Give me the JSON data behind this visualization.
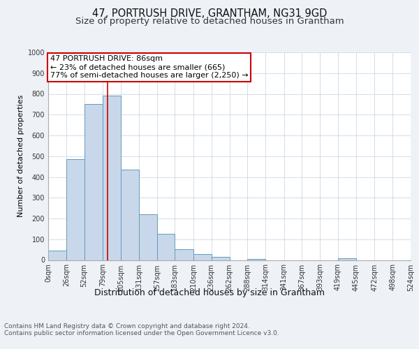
{
  "title": "47, PORTRUSH DRIVE, GRANTHAM, NG31 9GD",
  "subtitle": "Size of property relative to detached houses in Grantham",
  "xlabel": "Distribution of detached houses by size in Grantham",
  "ylabel": "Number of detached properties",
  "bin_edges": [
    0,
    26,
    52,
    79,
    105,
    131,
    157,
    183,
    210,
    236,
    262,
    288,
    314,
    341,
    367,
    393,
    419,
    445,
    472,
    498,
    524
  ],
  "bar_heights": [
    45,
    485,
    750,
    790,
    435,
    220,
    125,
    52,
    28,
    14,
    0,
    5,
    0,
    0,
    0,
    0,
    8,
    0,
    0,
    0
  ],
  "bar_color": "#c8d8ea",
  "bar_edge_color": "#6699bb",
  "bar_edge_width": 0.7,
  "vline_x": 86,
  "vline_color": "#cc0000",
  "annotation_line1": "47 PORTRUSH DRIVE: 86sqm",
  "annotation_line2": "← 23% of detached houses are smaller (665)",
  "annotation_line3": "77% of semi-detached houses are larger (2,250) →",
  "annotation_box_color": "#cc0000",
  "annotation_box_fill": "#ffffff",
  "ylim": [
    0,
    1000
  ],
  "yticks": [
    0,
    100,
    200,
    300,
    400,
    500,
    600,
    700,
    800,
    900,
    1000
  ],
  "tick_labels": [
    "0sqm",
    "26sqm",
    "52sqm",
    "79sqm",
    "105sqm",
    "131sqm",
    "157sqm",
    "183sqm",
    "210sqm",
    "236sqm",
    "262sqm",
    "288sqm",
    "314sqm",
    "341sqm",
    "367sqm",
    "393sqm",
    "419sqm",
    "445sqm",
    "472sqm",
    "498sqm",
    "524sqm"
  ],
  "footer_text": "Contains HM Land Registry data © Crown copyright and database right 2024.\nContains public sector information licensed under the Open Government Licence v3.0.",
  "bg_color": "#eef2f7",
  "plot_bg_color": "#ffffff",
  "grid_color": "#ccd8e4",
  "title_fontsize": 10.5,
  "subtitle_fontsize": 9.5,
  "xlabel_fontsize": 9,
  "ylabel_fontsize": 8,
  "tick_fontsize": 7,
  "annotation_fontsize": 8,
  "footer_fontsize": 6.5
}
